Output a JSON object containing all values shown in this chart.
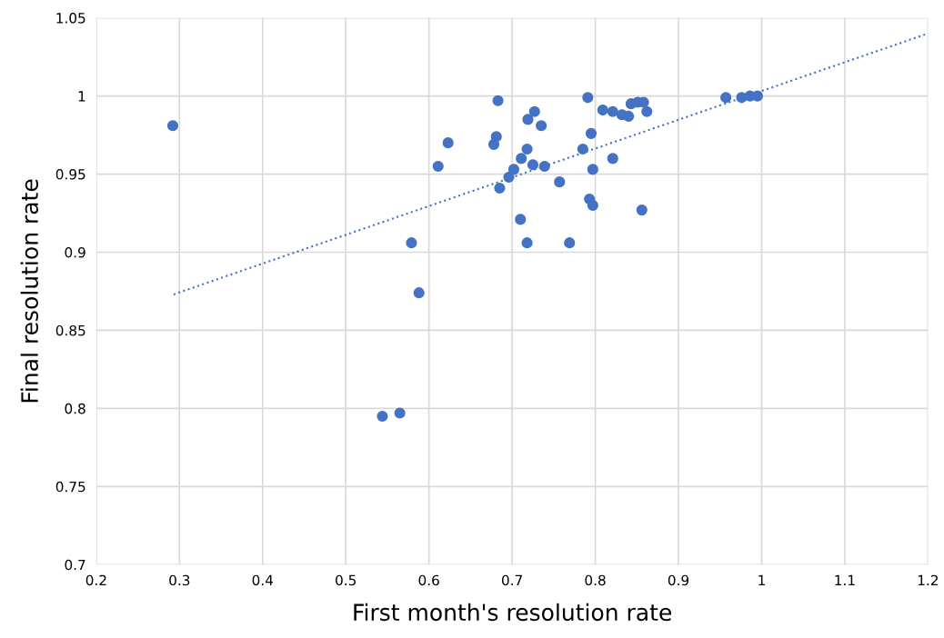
{
  "chart_data": {
    "type": "scatter",
    "xlabel": "First month's resolution rate",
    "ylabel": "Final resolution rate",
    "xlim": [
      0.2,
      1.2
    ],
    "xticks": [
      0.2,
      0.3,
      0.4,
      0.5,
      0.6,
      0.7,
      0.8,
      0.9,
      1,
      1.1,
      1.2
    ],
    "ylim": [
      0.7,
      1.05
    ],
    "yticks": [
      0.7,
      0.75,
      0.8,
      0.85,
      0.9,
      0.95,
      1,
      1.05
    ],
    "grid": true,
    "marker": "circle",
    "series": [
      {
        "color": "#4472c4",
        "x": [
          0.292,
          0.544,
          0.565,
          0.579,
          0.588,
          0.611,
          0.623,
          0.678,
          0.681,
          0.683,
          0.685,
          0.696,
          0.702,
          0.71,
          0.718,
          0.711,
          0.718,
          0.719,
          0.725,
          0.727,
          0.735,
          0.739,
          0.757,
          0.769,
          0.785,
          0.791,
          0.793,
          0.795,
          0.797,
          0.797,
          0.809,
          0.821,
          0.821,
          0.832,
          0.84,
          0.843,
          0.851,
          0.856,
          0.858,
          0.862,
          0.957,
          0.976,
          0.986,
          0.995
        ],
        "values": [
          0.981,
          0.795,
          0.797,
          0.906,
          0.874,
          0.955,
          0.97,
          0.969,
          0.974,
          0.997,
          0.941,
          0.948,
          0.953,
          0.921,
          0.906,
          0.96,
          0.966,
          0.985,
          0.956,
          0.99,
          0.981,
          0.955,
          0.945,
          0.906,
          0.966,
          0.999,
          0.934,
          0.976,
          0.93,
          0.953,
          0.991,
          0.96,
          0.99,
          0.988,
          0.987,
          0.995,
          0.996,
          0.927,
          0.996,
          0.99,
          0.999,
          0.999,
          1.0,
          1.0
        ]
      },
      {
        "type": "line",
        "line_style": "dotted",
        "marker": "none",
        "color": "#4472c4",
        "x": [
          0.293,
          1.2
        ],
        "values": [
          0.873,
          1.04
        ]
      }
    ]
  }
}
